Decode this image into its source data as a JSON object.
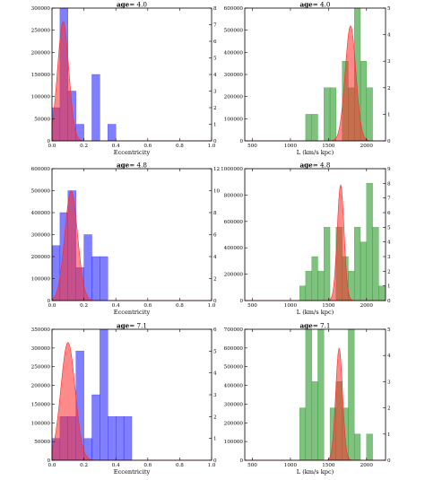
{
  "colors": {
    "hist_red": "#ff2a2a",
    "hist_blue": "#2a2aff",
    "hist_green": "#2a9a2a",
    "kde_purple": "#6a1b9a",
    "kde_olive": "#6b5a1a"
  },
  "chart_data": [
    {
      "id": "ecc-4.0",
      "type": "bar",
      "title_prefix": "age",
      "title_value": "= 4.0",
      "xlabel": "Eccentricity",
      "xlim": [
        0,
        1.0
      ],
      "ylim": [
        0,
        300000
      ],
      "y2lim": [
        0,
        8
      ],
      "xticks": [
        "0.0",
        "0.2",
        "0.4",
        "0.6",
        "0.8",
        "1.0"
      ],
      "yticks": [
        "0",
        "50000",
        "100000",
        "150000",
        "200000",
        "250000",
        "300000"
      ],
      "y2ticks": [
        "0",
        "1",
        "2",
        "3",
        "4",
        "5",
        "6",
        "7",
        "8"
      ],
      "bin_width": 0.05,
      "hist_series": [
        {
          "color_key": "hist_blue",
          "bins": [
            0.0,
            0.05,
            0.1,
            0.15,
            0.2,
            0.25,
            0.3,
            0.35
          ],
          "values": [
            2,
            8,
            3,
            1,
            0,
            4,
            0,
            1
          ]
        }
      ],
      "kde": {
        "color_key": "hist_red",
        "mean": 0.07,
        "sd": 0.035,
        "peak": 270000
      }
    },
    {
      "id": "L-4.0",
      "type": "bar",
      "title_prefix": "age",
      "title_value": "= 4.0",
      "xlabel": "L (km/s kpc)",
      "xlim": [
        400,
        2250
      ],
      "ylim": [
        0,
        600000
      ],
      "y2lim": [
        0,
        5
      ],
      "xticks": [
        "500",
        "1000",
        "1500",
        "2000"
      ],
      "yticks": [
        "0",
        "100000",
        "200000",
        "300000",
        "400000",
        "500000",
        "600000"
      ],
      "y2ticks": [
        "0",
        "1",
        "2",
        "3",
        "4",
        "5"
      ],
      "bin_width": 80,
      "hist_series": [
        {
          "color_key": "hist_green",
          "bins": [
            1200,
            1280,
            1360,
            1440,
            1520,
            1600,
            1680,
            1760,
            1840,
            1920,
            2000,
            2080
          ],
          "values": [
            1,
            1,
            0,
            2,
            2,
            0,
            3,
            2,
            5,
            3,
            2,
            0
          ]
        }
      ],
      "kde": {
        "color_key": "hist_red",
        "mean": 1790,
        "sd": 70,
        "peak": 520000
      }
    },
    {
      "id": "ecc-4.8",
      "type": "bar",
      "title_prefix": "age",
      "title_value": "= 4.8",
      "xlabel": "Eccentricity",
      "xlim": [
        0,
        1.0
      ],
      "ylim": [
        0,
        600000
      ],
      "y2lim": [
        0,
        12
      ],
      "xticks": [
        "0.0",
        "0.2",
        "0.4",
        "0.6",
        "0.8",
        "1.0"
      ],
      "yticks": [
        "0",
        "100000",
        "200000",
        "300000",
        "400000",
        "500000",
        "600000"
      ],
      "y2ticks": [
        "0",
        "2",
        "4",
        "6",
        "8",
        "10",
        "12"
      ],
      "bin_width": 0.05,
      "hist_series": [
        {
          "color_key": "hist_blue",
          "bins": [
            0.0,
            0.05,
            0.1,
            0.15,
            0.2,
            0.25,
            0.3,
            0.35
          ],
          "values": [
            5,
            8,
            10,
            3,
            6,
            4,
            4,
            0
          ]
        }
      ],
      "kde": {
        "color_key": "hist_red",
        "mean": 0.12,
        "sd": 0.04,
        "peak": 500000
      }
    },
    {
      "id": "L-4.8",
      "type": "bar",
      "title_prefix": "age",
      "title_value": "= 4.8",
      "xlabel": "L (km/s kpc)",
      "xlim": [
        400,
        2250
      ],
      "ylim": [
        0,
        1000000
      ],
      "y2lim": [
        0,
        9
      ],
      "xticks": [
        "500",
        "1000",
        "1500",
        "2000"
      ],
      "yticks": [
        "0",
        "200000",
        "400000",
        "600000",
        "800000",
        "1000000"
      ],
      "y2ticks": [
        "0",
        "1",
        "2",
        "3",
        "4",
        "5",
        "6",
        "7",
        "8",
        "9"
      ],
      "bin_width": 80,
      "hist_series": [
        {
          "color_key": "hist_green",
          "bins": [
            1120,
            1200,
            1280,
            1360,
            1440,
            1520,
            1600,
            1680,
            1760,
            1840,
            1920,
            2000,
            2080,
            2160
          ],
          "values": [
            1,
            2,
            3,
            2,
            5,
            0,
            5,
            3,
            2,
            5,
            4,
            8,
            5,
            1
          ]
        }
      ],
      "kde": {
        "color_key": "hist_red",
        "mean": 1660,
        "sd": 45,
        "peak": 880000
      }
    },
    {
      "id": "ecc-7.1",
      "type": "bar",
      "title_prefix": "age",
      "title_value": "= 7.1",
      "xlabel": "Eccentricity",
      "xlim": [
        0,
        1.0
      ],
      "ylim": [
        0,
        350000
      ],
      "y2lim": [
        0,
        6
      ],
      "xticks": [
        "0.0",
        "0.2",
        "0.4",
        "0.6",
        "0.8",
        "1.0"
      ],
      "yticks": [
        "0",
        "50000",
        "100000",
        "150000",
        "200000",
        "250000",
        "300000",
        "350000"
      ],
      "y2ticks": [
        "0",
        "1",
        "2",
        "3",
        "4",
        "5",
        "6"
      ],
      "bin_width": 0.05,
      "hist_series": [
        {
          "color_key": "hist_blue",
          "bins": [
            0.0,
            0.05,
            0.1,
            0.15,
            0.2,
            0.25,
            0.3,
            0.35,
            0.4,
            0.45
          ],
          "values": [
            1,
            2,
            2,
            5,
            1,
            3,
            6,
            2,
            2,
            2
          ]
        }
      ],
      "kde": {
        "color_key": "hist_red",
        "mean": 0.1,
        "sd": 0.045,
        "peak": 315000
      }
    },
    {
      "id": "L-7.1",
      "type": "bar",
      "title_prefix": "age",
      "title_value": "= 7.1",
      "xlabel": "L (km/s kpc)",
      "xlim": [
        400,
        2250
      ],
      "ylim": [
        0,
        700000
      ],
      "y2lim": [
        0,
        5
      ],
      "xticks": [
        "500",
        "1000",
        "1500",
        "2000"
      ],
      "yticks": [
        "0",
        "100000",
        "200000",
        "300000",
        "400000",
        "500000",
        "600000",
        "700000"
      ],
      "y2ticks": [
        "0",
        "1",
        "2",
        "3",
        "4",
        "5"
      ],
      "bin_width": 80,
      "hist_series": [
        {
          "color_key": "hist_green",
          "bins": [
            1120,
            1200,
            1280,
            1360,
            1440,
            1520,
            1600,
            1680,
            1760,
            1840,
            1920,
            2000
          ],
          "values": [
            2,
            5,
            3,
            5,
            0,
            2,
            3,
            2,
            5,
            1,
            0,
            1
          ]
        }
      ],
      "kde": {
        "color_key": "hist_red",
        "mean": 1640,
        "sd": 45,
        "peak": 600000
      }
    }
  ]
}
